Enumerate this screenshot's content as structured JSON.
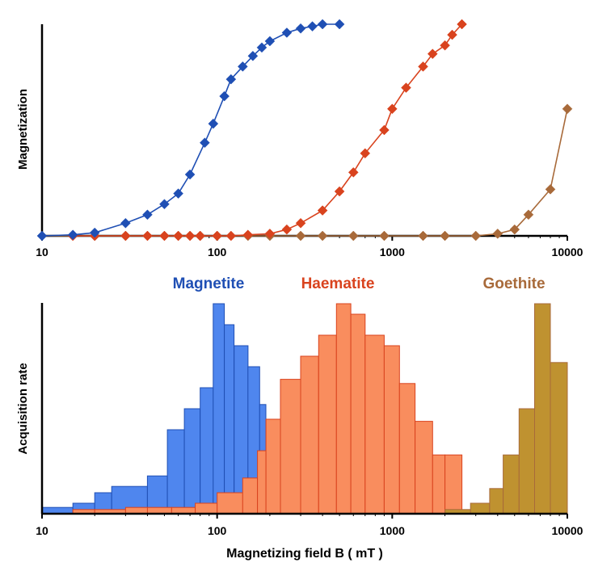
{
  "colors": {
    "magnetite": "#1f4fb4",
    "haematite": "#d9431e",
    "goethite": "#a86a3a",
    "magnetite_fill": "#4f86ee",
    "haematite_fill": "#f98d5e",
    "goethite_fill": "#bf9230",
    "axis": "#000000"
  },
  "legend": [
    "Magnetite",
    "Haematite",
    "Goethite"
  ],
  "chart_data": [
    {
      "type": "line",
      "title": "",
      "xlabel": "",
      "ylabel": "Magnetization",
      "xscale": "log",
      "xlim": [
        10,
        10000
      ],
      "ylim": [
        0,
        1
      ],
      "x_ticks": [
        "10",
        "100",
        "1000",
        "10000"
      ],
      "grid": false,
      "series": [
        {
          "name": "Magnetite",
          "x": [
            10,
            15,
            20,
            30,
            40,
            50,
            60,
            70,
            85,
            95,
            110,
            120,
            140,
            160,
            180,
            200,
            250,
            300,
            350,
            400,
            500
          ],
          "y": [
            0,
            0.005,
            0.015,
            0.06,
            0.1,
            0.15,
            0.2,
            0.29,
            0.44,
            0.53,
            0.66,
            0.74,
            0.8,
            0.85,
            0.89,
            0.92,
            0.96,
            0.98,
            0.99,
            1.0,
            1.0
          ]
        },
        {
          "name": "Haematite",
          "x": [
            15,
            20,
            30,
            40,
            50,
            60,
            70,
            80,
            100,
            120,
            150,
            200,
            250,
            300,
            400,
            500,
            600,
            700,
            900,
            1000,
            1200,
            1500,
            1700,
            2000,
            2200,
            2500
          ],
          "y": [
            0,
            0,
            0,
            0,
            0,
            0,
            0,
            0,
            0,
            0,
            0.005,
            0.01,
            0.03,
            0.06,
            0.12,
            0.21,
            0.3,
            0.39,
            0.5,
            0.6,
            0.7,
            0.8,
            0.86,
            0.9,
            0.95,
            1.0
          ]
        },
        {
          "name": "Goethite",
          "x": [
            10,
            20,
            30,
            40,
            50,
            60,
            70,
            80,
            100,
            150,
            200,
            300,
            400,
            600,
            900,
            1500,
            2000,
            3000,
            4000,
            5000,
            6000,
            8000,
            10000
          ],
          "y": [
            0,
            0,
            0,
            0,
            0,
            0,
            0,
            0,
            0,
            0,
            0,
            0,
            0,
            0,
            0,
            0,
            0,
            0,
            0.01,
            0.03,
            0.1,
            0.22,
            0.6
          ]
        }
      ]
    },
    {
      "type": "bar",
      "title": "",
      "xlabel": "Magnetizing field B ( mT )",
      "ylabel": "Acquisition rate",
      "xscale": "log",
      "xlim": [
        10,
        10000
      ],
      "ylim": [
        0,
        1
      ],
      "x_ticks": [
        "10",
        "100",
        "1000",
        "10000"
      ],
      "series": [
        {
          "name": "Magnetite",
          "bins": [
            [
              10,
              15
            ],
            [
              15,
              20
            ],
            [
              20,
              25
            ],
            [
              25,
              40
            ],
            [
              40,
              52
            ],
            [
              52,
              65
            ],
            [
              65,
              80
            ],
            [
              80,
              95
            ],
            [
              95,
              110
            ],
            [
              110,
              125
            ],
            [
              125,
              150
            ],
            [
              150,
              175
            ],
            [
              175,
              190
            ],
            [
              190,
              210
            ]
          ],
          "values": [
            0.03,
            0.05,
            0.1,
            0.13,
            0.18,
            0.4,
            0.5,
            0.6,
            1.0,
            0.9,
            0.8,
            0.7,
            0.52,
            0.4
          ]
        },
        {
          "name": "Haematite",
          "bins": [
            [
              15,
              20
            ],
            [
              20,
              30
            ],
            [
              30,
              40
            ],
            [
              40,
              55
            ],
            [
              55,
              75
            ],
            [
              75,
              100
            ],
            [
              100,
              140
            ],
            [
              140,
              170
            ],
            [
              170,
              190
            ],
            [
              190,
              230
            ],
            [
              230,
              300
            ],
            [
              300,
              380
            ],
            [
              380,
              480
            ],
            [
              480,
              580
            ],
            [
              580,
              700
            ],
            [
              700,
              900
            ],
            [
              900,
              1100
            ],
            [
              1100,
              1350
            ],
            [
              1350,
              1700
            ],
            [
              1700,
              2000
            ],
            [
              2000,
              2500
            ],
            [
              2500,
              3000
            ],
            [
              3000,
              3500
            ]
          ],
          "values": [
            0.02,
            0.02,
            0.03,
            0.03,
            0.03,
            0.05,
            0.1,
            0.17,
            0.3,
            0.45,
            0.64,
            0.75,
            0.85,
            1.0,
            0.95,
            0.85,
            0.8,
            0.62,
            0.44,
            0.28,
            0.28,
            0.0,
            0.0
          ]
        },
        {
          "name": "Goethite",
          "bins": [
            [
              2000,
              2800
            ],
            [
              2800,
              3600
            ],
            [
              3600,
              4300
            ],
            [
              4300,
              5300
            ],
            [
              5300,
              6500
            ],
            [
              6500,
              8000
            ],
            [
              8000,
              10000
            ]
          ],
          "values": [
            0.02,
            0.05,
            0.12,
            0.28,
            0.5,
            1.0,
            0.72
          ]
        }
      ]
    }
  ]
}
